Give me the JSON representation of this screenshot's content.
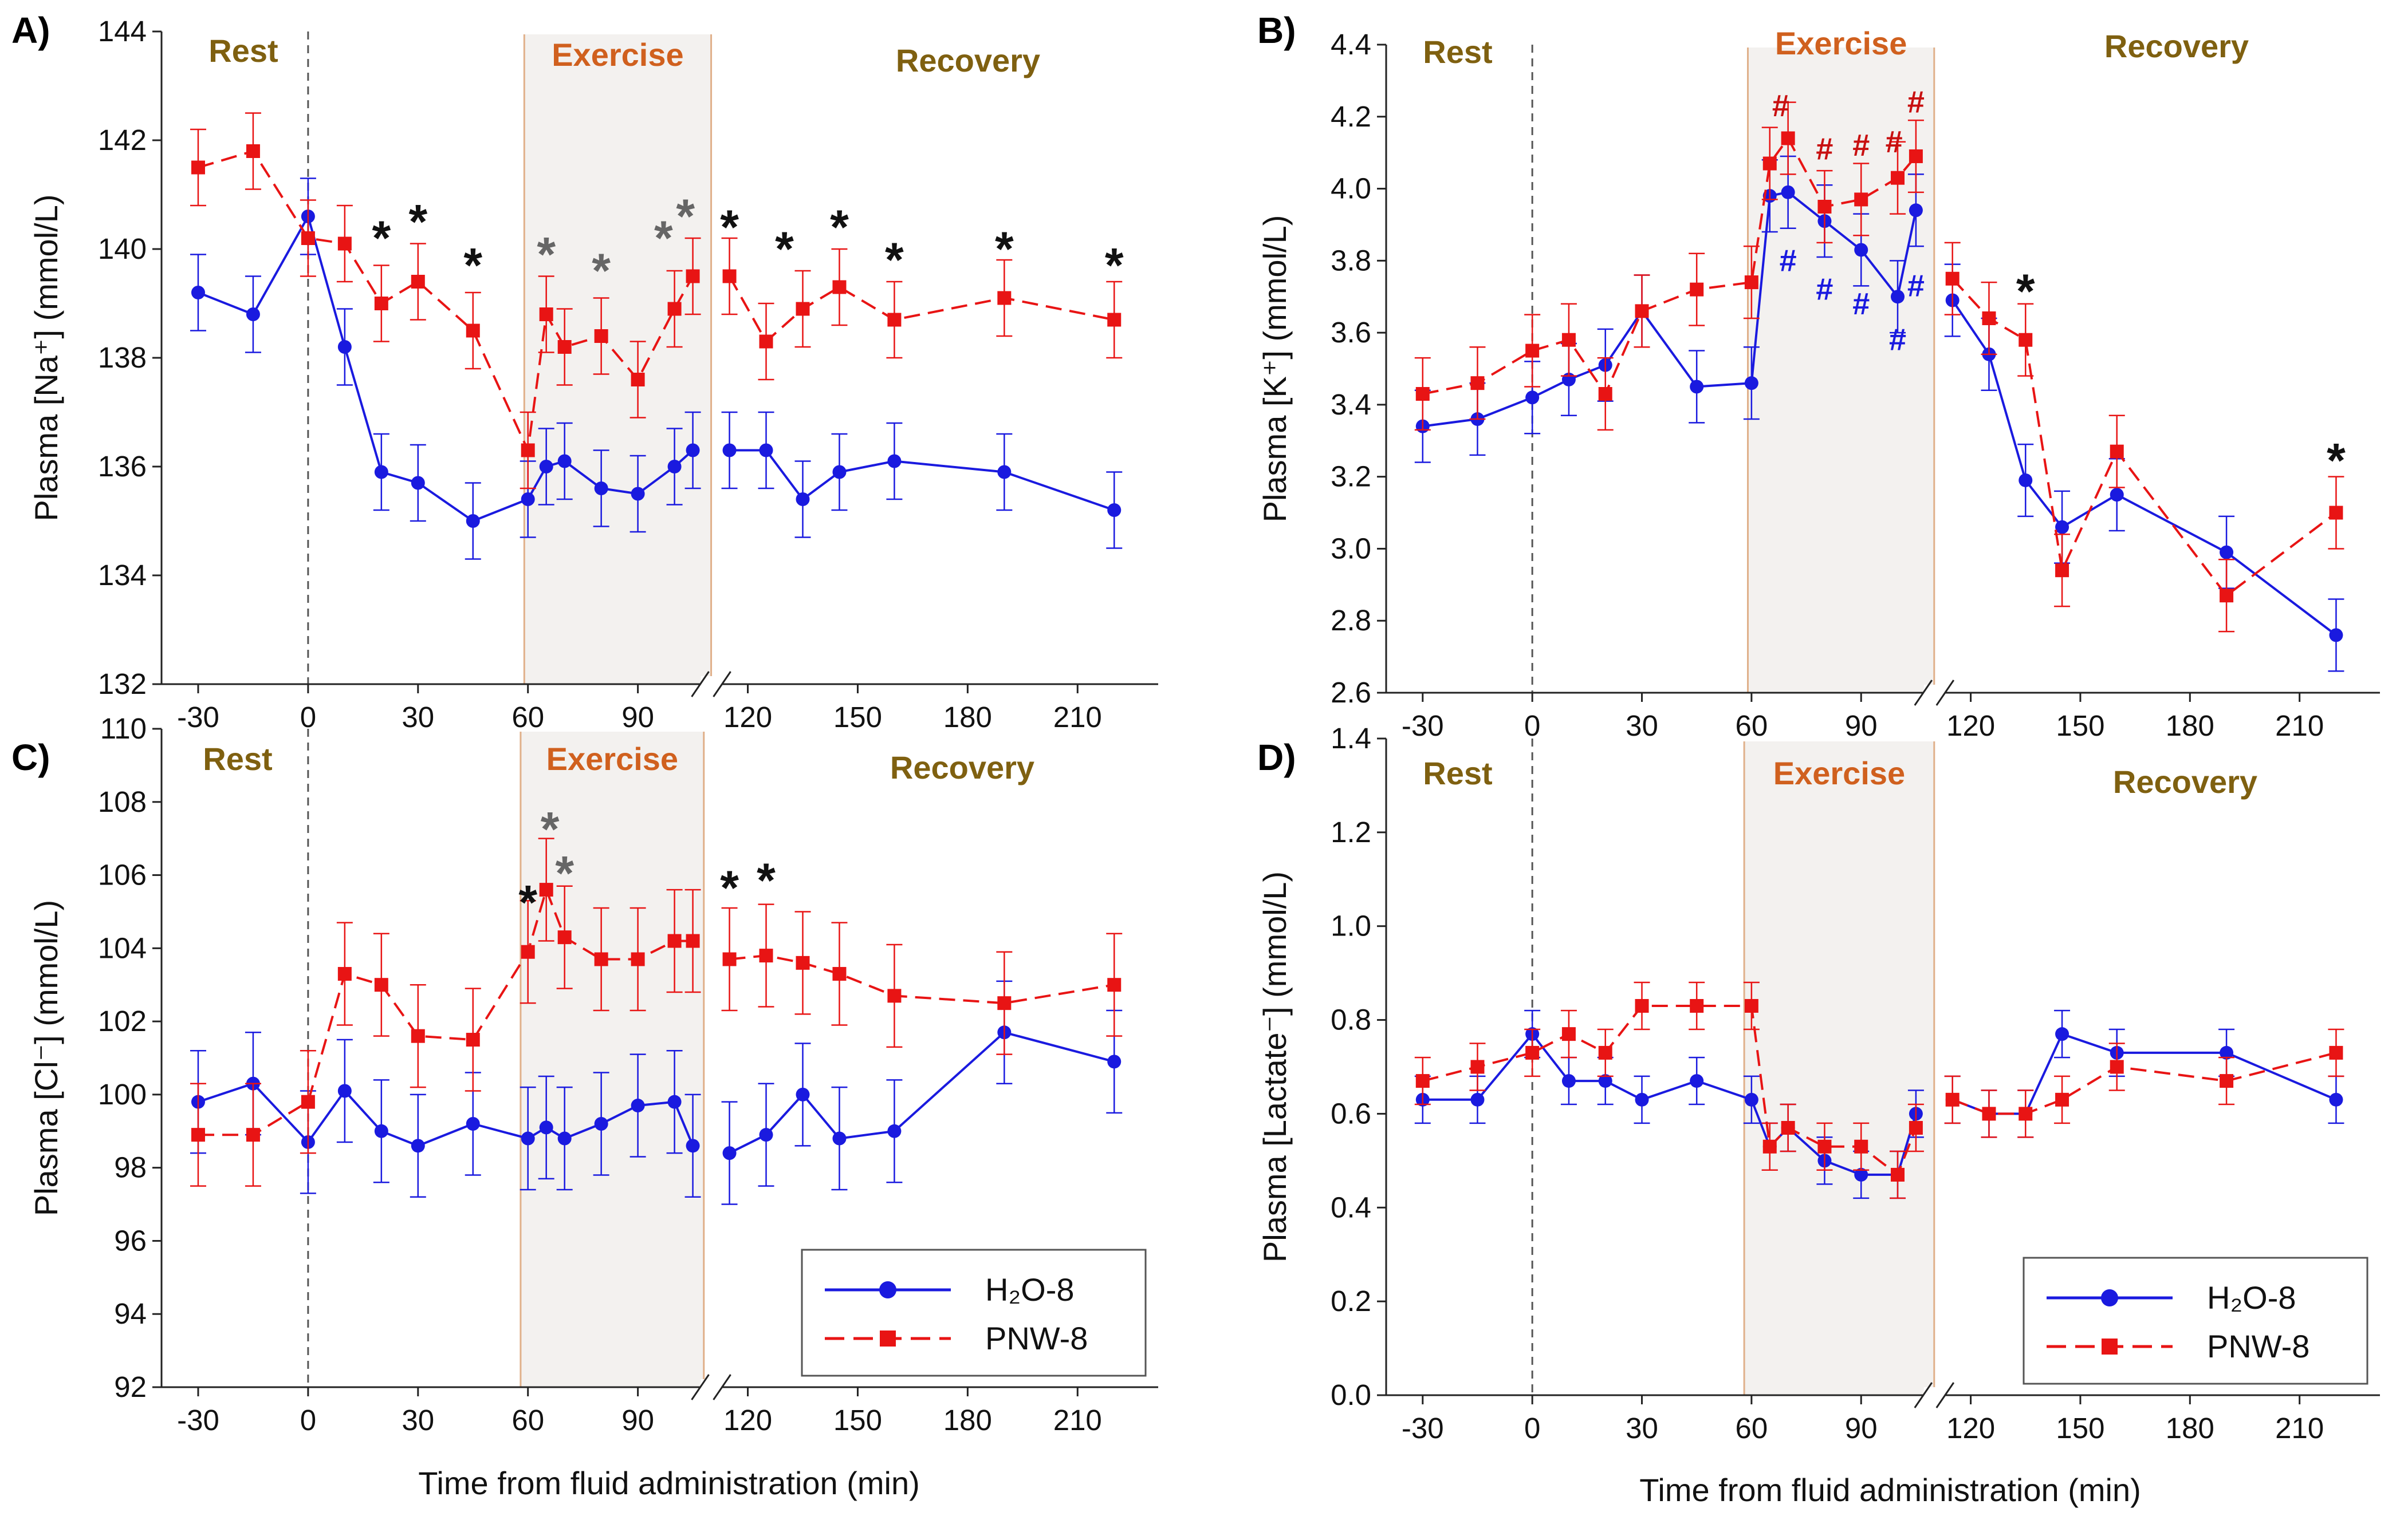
{
  "figure": {
    "x_axis_label": "Time from fluid administration (min)",
    "phase_labels": {
      "rest": "Rest",
      "exercise": "Exercise",
      "recovery": "Recovery"
    },
    "colors": {
      "h2o": "#1a1adf",
      "pnw": "#e81414",
      "rest_label": "#7f6010",
      "exercise_label": "#d0601e",
      "recovery_label": "#7f6010",
      "exercise_shade": "#f3f1ef",
      "asterisk_black": "#111111",
      "asterisk_gray": "#666666",
      "hash_red": "#c81010",
      "hash_blue": "#1a1adf"
    },
    "legend": {
      "h2o_label": "H₂O-8",
      "pnw_label": "PNW-8"
    }
  },
  "chart_data": [
    {
      "type": "line",
      "panel": "A)",
      "ylabel": "Plasma [Na⁺] (mmol/L)",
      "xlabel": "",
      "ylim": [
        132,
        144
      ],
      "yticks": [
        132,
        134,
        136,
        138,
        140,
        142,
        144
      ],
      "xticks": [
        -30,
        0,
        30,
        60,
        90,
        120,
        150,
        180,
        210
      ],
      "axis_break": [
        108,
        112
      ],
      "exercise_window": [
        59,
        110
      ],
      "series": [
        {
          "name": "H₂O-8",
          "x": [
            -30,
            -15,
            0,
            10,
            20,
            30,
            45,
            60,
            65,
            70,
            80,
            90,
            100,
            105,
            115,
            125,
            135,
            145,
            160,
            190,
            220
          ],
          "y": [
            139.2,
            138.8,
            140.6,
            138.2,
            135.9,
            135.7,
            135.0,
            135.4,
            136.0,
            136.1,
            135.6,
            135.5,
            136.0,
            136.3,
            136.3,
            136.3,
            135.4,
            135.9,
            136.1,
            135.9,
            135.2
          ],
          "err": [
            0.7,
            0.7,
            0.7,
            0.7,
            0.7,
            0.7,
            0.7,
            0.7,
            0.7,
            0.7,
            0.7,
            0.7,
            0.7,
            0.7,
            0.7,
            0.7,
            0.7,
            0.7,
            0.7,
            0.7,
            0.7
          ]
        },
        {
          "name": "PNW-8",
          "x": [
            -30,
            -15,
            0,
            10,
            20,
            30,
            45,
            60,
            65,
            70,
            80,
            90,
            100,
            105,
            115,
            125,
            135,
            145,
            160,
            190,
            220
          ],
          "y": [
            141.5,
            141.8,
            140.2,
            140.1,
            139.0,
            139.4,
            138.5,
            136.3,
            138.8,
            138.2,
            138.4,
            137.6,
            138.9,
            139.5,
            139.5,
            138.3,
            138.9,
            139.3,
            138.7,
            139.1,
            138.7
          ],
          "err": [
            0.7,
            0.7,
            0.7,
            0.7,
            0.7,
            0.7,
            0.7,
            0.7,
            0.7,
            0.7,
            0.7,
            0.7,
            0.7,
            0.7,
            0.7,
            0.7,
            0.7,
            0.7,
            0.7,
            0.7,
            0.7
          ]
        }
      ],
      "annotations": [
        {
          "x": 20,
          "y": 140.3,
          "text": "*",
          "color": "black"
        },
        {
          "x": 30,
          "y": 140.6,
          "text": "*",
          "color": "black"
        },
        {
          "x": 45,
          "y": 139.8,
          "text": "*",
          "color": "black"
        },
        {
          "x": 65,
          "y": 140.0,
          "text": "*",
          "color": "gray"
        },
        {
          "x": 80,
          "y": 139.7,
          "text": "*",
          "color": "gray"
        },
        {
          "x": 97,
          "y": 140.3,
          "text": "*",
          "color": "gray"
        },
        {
          "x": 103,
          "y": 140.7,
          "text": "*",
          "color": "gray"
        },
        {
          "x": 115,
          "y": 140.5,
          "text": "*",
          "color": "black"
        },
        {
          "x": 130,
          "y": 140.1,
          "text": "*",
          "color": "black"
        },
        {
          "x": 145,
          "y": 140.5,
          "text": "*",
          "color": "black"
        },
        {
          "x": 160,
          "y": 139.9,
          "text": "*",
          "color": "black"
        },
        {
          "x": 190,
          "y": 140.1,
          "text": "*",
          "color": "black"
        },
        {
          "x": 220,
          "y": 139.8,
          "text": "*",
          "color": "black"
        }
      ],
      "legend": false
    },
    {
      "type": "line",
      "panel": "B)",
      "ylabel": "Plasma [K⁺] (mmol/L)",
      "xlabel": "",
      "ylim": [
        2.6,
        4.4
      ],
      "yticks": [
        2.6,
        2.8,
        3.0,
        3.2,
        3.4,
        3.6,
        3.8,
        4.0,
        4.2,
        4.4
      ],
      "xticks": [
        -30,
        0,
        30,
        60,
        90,
        120,
        150,
        180,
        210
      ],
      "axis_break": [
        108,
        112
      ],
      "exercise_window": [
        59,
        110
      ],
      "series": [
        {
          "name": "H₂O-8",
          "x": [
            -30,
            -15,
            0,
            10,
            20,
            30,
            45,
            60,
            65,
            70,
            80,
            90,
            100,
            105,
            115,
            125,
            135,
            145,
            160,
            190,
            220
          ],
          "y": [
            3.34,
            3.36,
            3.42,
            3.47,
            3.51,
            3.66,
            3.45,
            3.46,
            3.98,
            3.99,
            3.91,
            3.83,
            3.7,
            3.94,
            3.69,
            3.54,
            3.19,
            3.06,
            3.15,
            2.99,
            2.76
          ],
          "err": [
            0.1,
            0.1,
            0.1,
            0.1,
            0.1,
            0.1,
            0.1,
            0.1,
            0.1,
            0.1,
            0.1,
            0.1,
            0.1,
            0.1,
            0.1,
            0.1,
            0.1,
            0.1,
            0.1,
            0.1,
            0.1
          ]
        },
        {
          "name": "PNW-8",
          "x": [
            -30,
            -15,
            0,
            10,
            20,
            30,
            45,
            60,
            65,
            70,
            80,
            90,
            100,
            105,
            115,
            125,
            135,
            145,
            160,
            190,
            220
          ],
          "y": [
            3.43,
            3.46,
            3.55,
            3.58,
            3.43,
            3.66,
            3.72,
            3.74,
            4.07,
            4.14,
            3.95,
            3.97,
            4.03,
            4.09,
            3.75,
            3.64,
            3.58,
            2.94,
            3.27,
            2.87,
            3.1
          ],
          "err": [
            0.1,
            0.1,
            0.1,
            0.1,
            0.1,
            0.1,
            0.1,
            0.1,
            0.1,
            0.1,
            0.1,
            0.1,
            0.1,
            0.1,
            0.1,
            0.1,
            0.1,
            0.1,
            0.1,
            0.1,
            0.1
          ]
        }
      ],
      "annotations": [
        {
          "x": 68,
          "y": 4.23,
          "text": "#",
          "color": "red"
        },
        {
          "x": 80,
          "y": 4.11,
          "text": "#",
          "color": "red"
        },
        {
          "x": 90,
          "y": 4.12,
          "text": "#",
          "color": "red"
        },
        {
          "x": 99,
          "y": 4.13,
          "text": "#",
          "color": "red"
        },
        {
          "x": 105,
          "y": 4.24,
          "text": "#",
          "color": "red"
        },
        {
          "x": 70,
          "y": 3.8,
          "text": "#",
          "color": "blue"
        },
        {
          "x": 80,
          "y": 3.72,
          "text": "#",
          "color": "blue"
        },
        {
          "x": 90,
          "y": 3.68,
          "text": "#",
          "color": "blue"
        },
        {
          "x": 100,
          "y": 3.58,
          "text": "#",
          "color": "blue"
        },
        {
          "x": 105,
          "y": 3.73,
          "text": "#",
          "color": "blue"
        },
        {
          "x": 135,
          "y": 3.73,
          "text": "*",
          "color": "black"
        },
        {
          "x": 220,
          "y": 3.26,
          "text": "*",
          "color": "black"
        }
      ],
      "legend": false
    },
    {
      "type": "line",
      "panel": "C)",
      "ylabel": "Plasma [Cl⁻] (mmol/L)",
      "xlabel": "Time from fluid administration (min)",
      "ylim": [
        92,
        110
      ],
      "yticks": [
        92,
        94,
        96,
        98,
        100,
        102,
        104,
        106,
        108,
        110
      ],
      "xticks": [
        -30,
        0,
        30,
        60,
        90,
        120,
        150,
        180,
        210
      ],
      "axis_break": [
        108,
        112
      ],
      "exercise_window": [
        58,
        108
      ],
      "series": [
        {
          "name": "H₂O-8",
          "x": [
            -30,
            -15,
            0,
            10,
            20,
            30,
            45,
            60,
            65,
            70,
            80,
            90,
            100,
            105,
            115,
            125,
            135,
            145,
            160,
            190,
            220
          ],
          "y": [
            99.8,
            100.3,
            98.7,
            100.1,
            99.0,
            98.6,
            99.2,
            98.8,
            99.1,
            98.8,
            99.2,
            99.7,
            99.8,
            98.6,
            98.4,
            98.9,
            100.0,
            98.8,
            99.0,
            101.7,
            100.9
          ],
          "err": [
            1.4,
            1.4,
            1.4,
            1.4,
            1.4,
            1.4,
            1.4,
            1.4,
            1.4,
            1.4,
            1.4,
            1.4,
            1.4,
            1.4,
            1.4,
            1.4,
            1.4,
            1.4,
            1.4,
            1.4,
            1.4
          ]
        },
        {
          "name": "PNW-8",
          "x": [
            -30,
            -15,
            0,
            10,
            20,
            30,
            45,
            60,
            65,
            70,
            80,
            90,
            100,
            105,
            115,
            125,
            135,
            145,
            160,
            190,
            220
          ],
          "y": [
            98.9,
            98.9,
            99.8,
            103.3,
            103.0,
            101.6,
            101.5,
            103.9,
            105.6,
            104.3,
            103.7,
            103.7,
            104.2,
            104.2,
            103.7,
            103.8,
            103.6,
            103.3,
            102.7,
            102.5,
            103.0
          ],
          "err": [
            1.4,
            1.4,
            1.4,
            1.4,
            1.4,
            1.4,
            1.4,
            1.4,
            1.4,
            1.4,
            1.4,
            1.4,
            1.4,
            1.4,
            1.4,
            1.4,
            1.4,
            1.4,
            1.4,
            1.4,
            1.4
          ]
        }
      ],
      "annotations": [
        {
          "x": 60,
          "y": 105.4,
          "text": "*",
          "color": "black"
        },
        {
          "x": 66,
          "y": 107.4,
          "text": "*",
          "color": "gray"
        },
        {
          "x": 70,
          "y": 106.2,
          "text": "*",
          "color": "gray"
        },
        {
          "x": 115,
          "y": 105.8,
          "text": "*",
          "color": "black"
        },
        {
          "x": 125,
          "y": 106.0,
          "text": "*",
          "color": "black"
        }
      ],
      "legend": true,
      "legend_position": "bottom-right"
    },
    {
      "type": "line",
      "panel": "D)",
      "ylabel": "Plasma [Lactate⁻] (mmol/L)",
      "xlabel": "Time from fluid administration (min)",
      "ylim": [
        0.0,
        1.4
      ],
      "yticks": [
        0.0,
        0.2,
        0.4,
        0.6,
        0.8,
        1.0,
        1.2,
        1.4
      ],
      "xticks": [
        -30,
        0,
        30,
        60,
        90,
        120,
        150,
        180,
        210
      ],
      "axis_break": [
        108,
        112
      ],
      "exercise_window": [
        58,
        110
      ],
      "series": [
        {
          "name": "H₂O-8",
          "x": [
            -30,
            -15,
            0,
            10,
            20,
            30,
            45,
            60,
            65,
            70,
            80,
            90,
            100,
            105,
            115,
            125,
            135,
            145,
            160,
            190,
            220
          ],
          "y": [
            0.63,
            0.63,
            0.77,
            0.67,
            0.67,
            0.63,
            0.67,
            0.63,
            0.53,
            0.57,
            0.5,
            0.47,
            0.47,
            0.6,
            0.63,
            0.6,
            0.6,
            0.77,
            0.73,
            0.73,
            0.63
          ],
          "err": [
            0.05,
            0.05,
            0.05,
            0.05,
            0.05,
            0.05,
            0.05,
            0.05,
            0.05,
            0.05,
            0.05,
            0.05,
            0.05,
            0.05,
            0.05,
            0.05,
            0.05,
            0.05,
            0.05,
            0.05,
            0.05
          ]
        },
        {
          "name": "PNW-8",
          "x": [
            -30,
            -15,
            0,
            10,
            20,
            30,
            45,
            60,
            65,
            70,
            80,
            90,
            100,
            105,
            115,
            125,
            135,
            145,
            160,
            190,
            220
          ],
          "y": [
            0.67,
            0.7,
            0.73,
            0.77,
            0.73,
            0.83,
            0.83,
            0.83,
            0.53,
            0.57,
            0.53,
            0.53,
            0.47,
            0.57,
            0.63,
            0.6,
            0.6,
            0.63,
            0.7,
            0.67,
            0.73
          ],
          "err": [
            0.05,
            0.05,
            0.05,
            0.05,
            0.05,
            0.05,
            0.05,
            0.05,
            0.05,
            0.05,
            0.05,
            0.05,
            0.05,
            0.05,
            0.05,
            0.05,
            0.05,
            0.05,
            0.05,
            0.05,
            0.05
          ]
        }
      ],
      "annotations": [],
      "legend": true,
      "legend_position": "bottom-right"
    }
  ]
}
